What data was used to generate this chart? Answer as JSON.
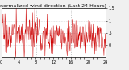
{
  "title": "normalized wind direction (Last 24 Hours)",
  "background_color": "#f0f0f0",
  "plot_bg_color": "#ffffff",
  "line_color": "#cc0000",
  "grid_color": "#bbbbbb",
  "ylim": [
    -0.5,
    1.5
  ],
  "num_points": 288,
  "yticks": [
    0.0,
    0.5,
    1.0,
    1.5
  ],
  "ytick_labels": [
    "0",
    ".5",
    "1",
    "1.5"
  ],
  "vline_positions": [
    96,
    192
  ],
  "vline_color": "#999999",
  "title_fontsize": 4.5,
  "tick_fontsize": 3.5,
  "seed": 17
}
